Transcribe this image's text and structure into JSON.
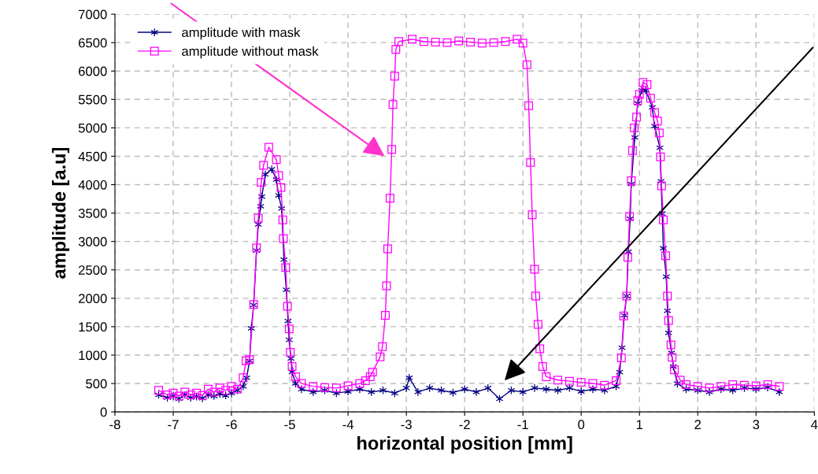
{
  "chart_data": {
    "type": "line",
    "xlabel": "horizontal position [mm]",
    "ylabel": "amplitude [a.u]",
    "xlim": [
      -8,
      4
    ],
    "xticks": [
      -8,
      -7,
      -6,
      -5,
      -4,
      -3,
      -2,
      -1,
      0,
      1,
      2,
      3,
      4
    ],
    "ylim": [
      0,
      7000
    ],
    "yticks": [
      0,
      500,
      1000,
      1500,
      2000,
      2500,
      3000,
      3500,
      4000,
      4500,
      5000,
      5500,
      6000,
      6500,
      7000
    ],
    "grid": true,
    "legend": "top left",
    "series": [
      {
        "name": "amplitude with mask",
        "color": "#000080",
        "marker": "cross",
        "x": [
          -7.25,
          -7.1,
          -7.0,
          -6.9,
          -6.8,
          -6.7,
          -6.6,
          -6.5,
          -6.4,
          -6.3,
          -6.2,
          -6.1,
          -6.0,
          -5.9,
          -5.8,
          -5.74,
          -5.69,
          -5.66,
          -5.62,
          -5.57,
          -5.54,
          -5.5,
          -5.48,
          -5.42,
          -5.31,
          -5.23,
          -5.19,
          -5.14,
          -5.1,
          -5.06,
          -5.03,
          -5.01,
          -4.98,
          -4.96,
          -4.9,
          -4.8,
          -4.6,
          -4.4,
          -4.2,
          -4.0,
          -3.8,
          -3.6,
          -3.4,
          -3.2,
          -3.0,
          -2.95,
          -2.8,
          -2.6,
          -2.4,
          -2.2,
          -2.0,
          -1.8,
          -1.6,
          -1.4,
          -1.2,
          -1.0,
          -0.8,
          -0.6,
          -0.4,
          -0.2,
          0.0,
          0.2,
          0.4,
          0.6,
          0.66,
          0.7,
          0.74,
          0.78,
          0.81,
          0.84,
          0.86,
          0.92,
          0.97,
          1.04,
          1.11,
          1.22,
          1.26,
          1.35,
          1.37,
          1.39,
          1.41,
          1.46,
          1.48,
          1.5,
          1.55,
          1.58,
          1.65,
          1.8,
          2.0,
          2.2,
          2.4,
          2.6,
          2.8,
          3.0,
          3.2,
          3.4
        ],
        "values": [
          300,
          250,
          280,
          230,
          300,
          250,
          270,
          240,
          300,
          280,
          320,
          290,
          330,
          380,
          450,
          600,
          900,
          1470,
          1880,
          2840,
          3300,
          3620,
          3790,
          4180,
          4270,
          4090,
          3810,
          3580,
          2680,
          2150,
          1600,
          1270,
          940,
          700,
          500,
          400,
          350,
          380,
          330,
          360,
          400,
          350,
          380,
          330,
          420,
          600,
          350,
          420,
          380,
          340,
          400,
          350,
          420,
          230,
          380,
          350,
          420,
          400,
          380,
          420,
          360,
          400,
          380,
          450,
          700,
          1130,
          1700,
          2040,
          2820,
          3400,
          4010,
          4830,
          5430,
          5660,
          5660,
          5360,
          5030,
          4650,
          4060,
          3490,
          2880,
          2380,
          1780,
          1390,
          1040,
          800,
          500,
          400,
          380,
          350,
          400,
          380,
          420,
          400,
          430,
          350
        ]
      },
      {
        "name": "amplitude without mask",
        "color": "#ff00ff",
        "marker": "square",
        "x": [
          -7.25,
          -7.1,
          -7.0,
          -6.9,
          -6.8,
          -6.7,
          -6.6,
          -6.5,
          -6.4,
          -6.3,
          -6.2,
          -6.1,
          -6.0,
          -5.9,
          -5.8,
          -5.75,
          -5.69,
          -5.62,
          -5.57,
          -5.54,
          -5.49,
          -5.45,
          -5.36,
          -5.23,
          -5.19,
          -5.15,
          -5.12,
          -5.11,
          -5.07,
          -5.04,
          -5.01,
          -4.99,
          -4.96,
          -4.9,
          -4.8,
          -4.6,
          -4.4,
          -4.2,
          -4.0,
          -3.8,
          -3.7,
          -3.62,
          -3.58,
          -3.45,
          -3.41,
          -3.36,
          -3.34,
          -3.32,
          -3.28,
          -3.25,
          -3.23,
          -3.2,
          -3.18,
          -3.13,
          -2.9,
          -2.7,
          -2.5,
          -2.3,
          -2.1,
          -1.9,
          -1.7,
          -1.5,
          -1.3,
          -1.1,
          -1.0,
          -0.93,
          -0.9,
          -0.87,
          -0.84,
          -0.8,
          -0.78,
          -0.74,
          -0.71,
          -0.66,
          -0.6,
          -0.4,
          -0.2,
          0.0,
          0.2,
          0.4,
          0.6,
          0.69,
          0.73,
          0.78,
          0.8,
          0.83,
          0.86,
          0.88,
          0.91,
          0.95,
          0.97,
          1.0,
          1.06,
          1.13,
          1.19,
          1.26,
          1.31,
          1.34,
          1.36,
          1.38,
          1.41,
          1.45,
          1.48,
          1.5,
          1.54,
          1.56,
          1.6,
          1.7,
          1.8,
          2.0,
          2.2,
          2.4,
          2.6,
          2.8,
          3.0,
          3.2,
          3.4
        ],
        "values": [
          380,
          300,
          330,
          280,
          350,
          300,
          330,
          290,
          400,
          350,
          420,
          380,
          450,
          400,
          600,
          900,
          920,
          1890,
          2890,
          3410,
          4040,
          4340,
          4660,
          4440,
          4160,
          3950,
          3380,
          3050,
          2540,
          1860,
          1460,
          1050,
          800,
          620,
          500,
          450,
          430,
          420,
          460,
          500,
          550,
          620,
          700,
          970,
          1150,
          1700,
          2220,
          2870,
          3760,
          4620,
          5410,
          5910,
          6380,
          6520,
          6560,
          6520,
          6510,
          6500,
          6530,
          6510,
          6490,
          6500,
          6520,
          6560,
          6490,
          6110,
          5390,
          4390,
          3470,
          2510,
          2040,
          1540,
          1110,
          800,
          620,
          560,
          540,
          520,
          500,
          470,
          550,
          950,
          1690,
          2040,
          2720,
          3440,
          4070,
          4600,
          5000,
          5190,
          5480,
          5590,
          5800,
          5760,
          5520,
          5270,
          5120,
          4910,
          4490,
          3980,
          3380,
          2750,
          2040,
          1610,
          1180,
          960,
          740,
          560,
          480,
          450,
          420,
          450,
          480,
          470,
          460,
          480,
          450
        ]
      }
    ]
  }
}
